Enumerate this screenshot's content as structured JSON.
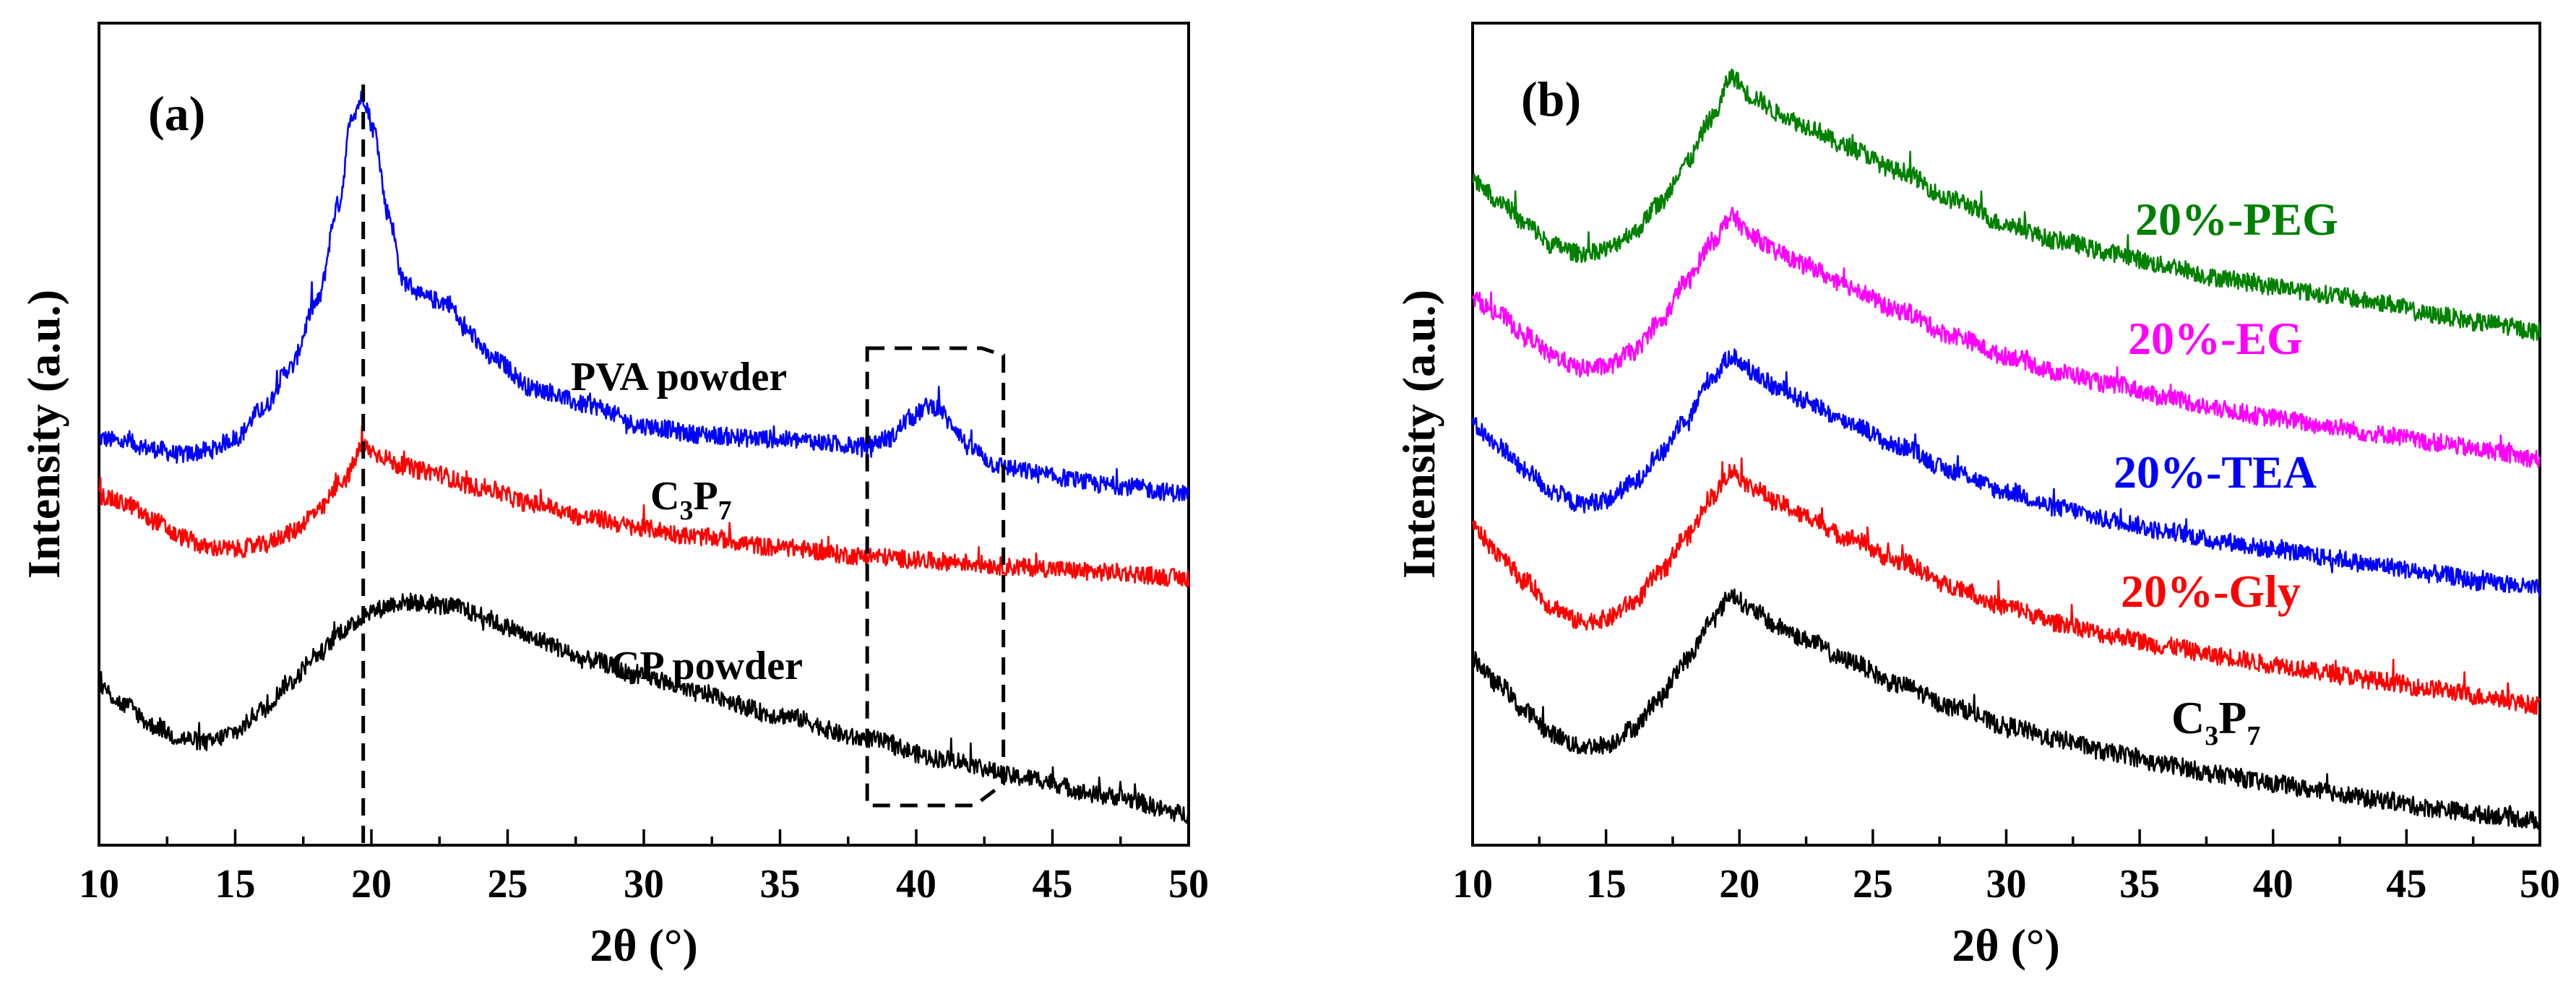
{
  "chart_data": [
    {
      "type": "line",
      "panel": "(a)",
      "xlabel": "2θ (°)",
      "ylabel": "Intensity (a.u.)",
      "xlim": [
        10,
        50
      ],
      "ylim": [
        0,
        10
      ],
      "x_ticks": [
        "10",
        "15",
        "20",
        "25",
        "30",
        "35",
        "40",
        "45",
        "50"
      ],
      "reference_line_x": 19.7,
      "highlight_box_x": [
        38.2,
        43.2
      ],
      "series": [
        {
          "name": "PVA powder",
          "color": "#0000ff",
          "label_text": "PVA powder",
          "x": [
            10,
            11,
            12,
            13,
            14,
            15,
            16,
            17,
            18,
            18.8,
            19.3,
            19.7,
            20.1,
            20.6,
            21.2,
            22,
            22.8,
            23.5,
            24.5,
            26,
            28,
            30,
            32,
            34,
            36,
            37,
            38,
            39,
            39.8,
            40.5,
            40.8,
            41.3,
            42,
            43,
            44,
            45,
            47,
            50
          ],
          "values": [
            4.95,
            4.9,
            4.82,
            4.75,
            4.8,
            4.95,
            5.3,
            5.8,
            6.6,
            7.8,
            8.9,
            9.1,
            8.7,
            7.7,
            6.85,
            6.65,
            6.6,
            6.25,
            5.9,
            5.55,
            5.35,
            5.1,
            5.0,
            4.95,
            4.92,
            4.88,
            4.85,
            4.95,
            5.2,
            5.35,
            5.32,
            5.12,
            4.82,
            4.62,
            4.55,
            4.48,
            4.38,
            4.28
          ]
        },
        {
          "name": "C3P7",
          "color": "#ff0000",
          "label_main": "C",
          "label_sub1": "3",
          "label_mid": "P",
          "label_sub2": "7",
          "x": [
            10,
            11,
            12,
            13,
            14,
            15,
            16,
            17,
            18,
            19,
            19.7,
            20.3,
            21,
            22,
            24,
            26,
            28,
            30,
            32,
            35,
            38,
            41,
            44,
            47,
            50
          ],
          "values": [
            4.25,
            4.15,
            3.95,
            3.75,
            3.62,
            3.6,
            3.65,
            3.8,
            4.05,
            4.45,
            4.85,
            4.75,
            4.62,
            4.55,
            4.35,
            4.15,
            3.98,
            3.85,
            3.75,
            3.62,
            3.52,
            3.45,
            3.38,
            3.32,
            3.25
          ]
        },
        {
          "name": "CP powder",
          "color": "#000000",
          "label_text": "CP powder",
          "x": [
            10,
            11,
            12,
            13,
            14,
            15,
            16,
            17,
            18,
            19,
            20,
            21,
            21.5,
            22,
            23,
            24,
            25,
            26,
            28,
            30,
            32,
            35,
            38,
            41,
            44,
            47,
            50
          ],
          "values": [
            1.92,
            1.7,
            1.45,
            1.3,
            1.25,
            1.38,
            1.65,
            1.98,
            2.32,
            2.62,
            2.85,
            2.95,
            2.96,
            2.93,
            2.9,
            2.8,
            2.65,
            2.5,
            2.25,
            2.05,
            1.85,
            1.58,
            1.3,
            1.05,
            0.82,
            0.6,
            0.38
          ]
        }
      ]
    },
    {
      "type": "line",
      "panel": "(b)",
      "xlabel": "2θ (°)",
      "ylabel": "Intensity (a.u.)",
      "xlim": [
        10,
        50
      ],
      "ylim": [
        0,
        10
      ],
      "x_ticks": [
        "10",
        "15",
        "20",
        "25",
        "30",
        "35",
        "40",
        "45",
        "50"
      ],
      "series": [
        {
          "name": "20%-PEG",
          "color": "#008000",
          "label_text": "20%-PEG",
          "x": [
            10,
            11,
            12,
            13,
            14,
            15,
            16,
            17,
            18,
            19,
            19.7,
            20.5,
            21.5,
            22.5,
            24,
            26,
            28,
            30,
            32,
            34,
            36,
            38,
            40,
            42,
            44,
            46,
            48,
            50
          ],
          "values": [
            8.1,
            7.85,
            7.55,
            7.3,
            7.2,
            7.25,
            7.45,
            7.8,
            8.3,
            8.85,
            9.35,
            9.1,
            8.9,
            8.75,
            8.5,
            8.2,
            7.85,
            7.55,
            7.35,
            7.2,
            7.05,
            6.9,
            6.8,
            6.7,
            6.6,
            6.45,
            6.35,
            6.25
          ]
        },
        {
          "name": "20%-EG",
          "color": "#ff00ff",
          "label_text": "20%-EG",
          "x": [
            10,
            11,
            12,
            13,
            14,
            15,
            16,
            17,
            18,
            19,
            19.7,
            20.5,
            21.5,
            22.5,
            24,
            26,
            28,
            30,
            32,
            34,
            36,
            38,
            40,
            42,
            44,
            46,
            48,
            50
          ],
          "values": [
            6.65,
            6.45,
            6.2,
            5.95,
            5.8,
            5.82,
            6.0,
            6.35,
            6.85,
            7.35,
            7.65,
            7.4,
            7.2,
            7.05,
            6.8,
            6.5,
            6.2,
            5.95,
            5.75,
            5.6,
            5.45,
            5.3,
            5.2,
            5.1,
            5.0,
            4.9,
            4.8,
            4.7
          ]
        },
        {
          "name": "20%-TEA",
          "color": "#0000ff",
          "label_text": "20%-TEA",
          "x": [
            10,
            11,
            12,
            13,
            14,
            15,
            16,
            17,
            18,
            19,
            19.7,
            20.5,
            21.5,
            22.5,
            24,
            26,
            28,
            30,
            32,
            34,
            36,
            38,
            40,
            42,
            44,
            46,
            48,
            50
          ],
          "values": [
            5.1,
            4.85,
            4.55,
            4.3,
            4.15,
            4.2,
            4.4,
            4.75,
            5.2,
            5.7,
            5.95,
            5.75,
            5.55,
            5.4,
            5.15,
            4.85,
            4.55,
            4.3,
            4.1,
            3.95,
            3.82,
            3.7,
            3.6,
            3.5,
            3.4,
            3.3,
            3.2,
            3.12
          ]
        },
        {
          "name": "20%-Gly",
          "color": "#ff0000",
          "label_text": "20%-Gly",
          "x": [
            10,
            11,
            12,
            13,
            14,
            15,
            16,
            17,
            18,
            19,
            19.7,
            20.5,
            21.5,
            22.5,
            24,
            26,
            28,
            30,
            32,
            34,
            36,
            38,
            40,
            42,
            44,
            46,
            48,
            50
          ],
          "values": [
            3.85,
            3.55,
            3.2,
            2.9,
            2.72,
            2.75,
            2.95,
            3.3,
            3.75,
            4.25,
            4.55,
            4.35,
            4.15,
            4.0,
            3.75,
            3.45,
            3.15,
            2.9,
            2.7,
            2.55,
            2.42,
            2.3,
            2.2,
            2.1,
            2.0,
            1.9,
            1.8,
            1.7
          ]
        },
        {
          "name": "C3P7",
          "color": "#000000",
          "label_main": "C",
          "label_sub1": "3",
          "label_mid": "P",
          "label_sub2": "7",
          "x": [
            10,
            11,
            12,
            13,
            14,
            15,
            16,
            17,
            18,
            19,
            19.7,
            20.5,
            21.5,
            22.5,
            24,
            26,
            28,
            30,
            32,
            34,
            36,
            38,
            40,
            42,
            44,
            46,
            48,
            50
          ],
          "values": [
            2.25,
            1.95,
            1.62,
            1.35,
            1.2,
            1.22,
            1.42,
            1.78,
            2.25,
            2.75,
            3.05,
            2.85,
            2.65,
            2.5,
            2.25,
            1.95,
            1.68,
            1.45,
            1.28,
            1.12,
            0.98,
            0.86,
            0.75,
            0.65,
            0.55,
            0.45,
            0.37,
            0.3
          ]
        }
      ]
    }
  ]
}
